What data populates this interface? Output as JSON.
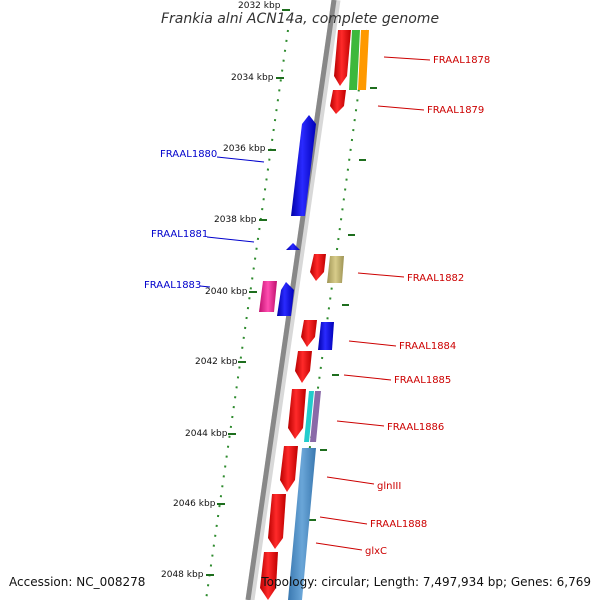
{
  "title": "Frankia alni ACN14a, complete genome",
  "accession": "Accession: NC_008278",
  "topology": "Topology: circular; Length: 7,497,934 bp; Genes: 6,769",
  "ticks": [
    "2032 kbp",
    "2034 kbp",
    "2036 kbp",
    "2038 kbp",
    "2040 kbp",
    "2042 kbp",
    "2044 kbp",
    "2046 kbp",
    "2048 kbp"
  ],
  "gene_labels_forward": [
    "FRAAL1878",
    "FRAAL1879",
    "FRAAL1882",
    "FRAAL1884",
    "FRAAL1885",
    "FRAAL1886",
    "glnIII",
    "FRAAL1888",
    "glxC"
  ],
  "gene_labels_reverse": [
    "FRAAL1880",
    "FRAAL1881",
    "FRAAL1883"
  ],
  "colors": {
    "forward_label": "#cc0000",
    "reverse_label": "#0000cc",
    "forward_gene": "#ff0000",
    "reverse_gene": "#0000ff",
    "backbone": "#888888",
    "dots": "#2e8b2e",
    "tick": "#1e6e1e"
  }
}
